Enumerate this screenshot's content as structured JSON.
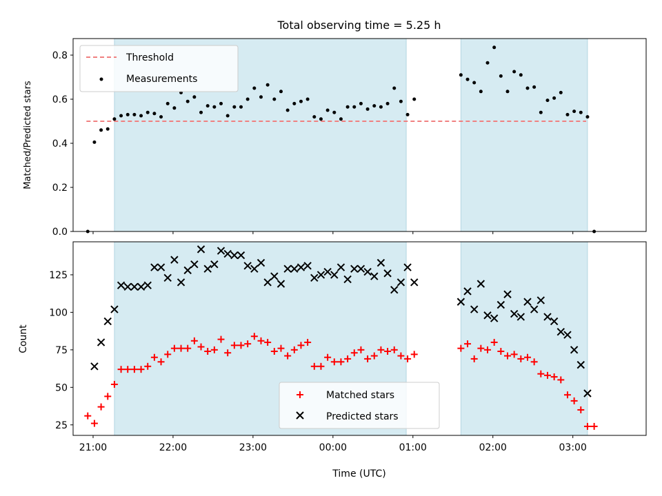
{
  "chart_data": [
    {
      "type": "scatter",
      "title": "Total observing time = 5.25 h",
      "xlabel": "",
      "ylabel": "Matched/Predicted stars",
      "xlim": [
        "20:45",
        "03:55"
      ],
      "ylim": [
        0,
        0.875
      ],
      "yticks": [
        "0.0",
        "0.2",
        "0.4",
        "0.6",
        "0.8"
      ],
      "legend_position": "upper-left",
      "shaded_intervals": [
        [
          "21:16",
          "00:55"
        ],
        [
          "01:36",
          "03:11"
        ]
      ],
      "shade_color": "#add8e6",
      "threshold": {
        "name": "Threshold",
        "value": 0.5,
        "x_range": [
          "20:55",
          "03:10"
        ],
        "color": "#f08080"
      },
      "series": [
        {
          "name": "Measurements",
          "color": "#000000",
          "marker": "dot",
          "points": [
            [
              "20:56",
              0.0
            ],
            [
              "21:01",
              0.405
            ],
            [
              "21:06",
              0.46
            ],
            [
              "21:11",
              0.465
            ],
            [
              "21:16",
              0.51
            ],
            [
              "21:21",
              0.525
            ],
            [
              "21:26",
              0.53
            ],
            [
              "21:31",
              0.53
            ],
            [
              "21:36",
              0.525
            ],
            [
              "21:41",
              0.54
            ],
            [
              "21:46",
              0.535
            ],
            [
              "21:51",
              0.52
            ],
            [
              "21:56",
              0.58
            ],
            [
              "22:01",
              0.56
            ],
            [
              "22:06",
              0.63
            ],
            [
              "22:11",
              0.59
            ],
            [
              "22:16",
              0.61
            ],
            [
              "22:21",
              0.54
            ],
            [
              "22:26",
              0.57
            ],
            [
              "22:31",
              0.565
            ],
            [
              "22:36",
              0.58
            ],
            [
              "22:41",
              0.525
            ],
            [
              "22:46",
              0.565
            ],
            [
              "22:51",
              0.565
            ],
            [
              "22:56",
              0.6
            ],
            [
              "23:01",
              0.65
            ],
            [
              "23:06",
              0.61
            ],
            [
              "23:11",
              0.665
            ],
            [
              "23:16",
              0.6
            ],
            [
              "23:21",
              0.635
            ],
            [
              "23:26",
              0.55
            ],
            [
              "23:31",
              0.58
            ],
            [
              "23:36",
              0.59
            ],
            [
              "23:41",
              0.6
            ],
            [
              "23:46",
              0.52
            ],
            [
              "23:51",
              0.51
            ],
            [
              "23:56",
              0.55
            ],
            [
              "00:01",
              0.54
            ],
            [
              "00:06",
              0.51
            ],
            [
              "00:11",
              0.565
            ],
            [
              "00:16",
              0.565
            ],
            [
              "00:21",
              0.58
            ],
            [
              "00:26",
              0.555
            ],
            [
              "00:31",
              0.57
            ],
            [
              "00:36",
              0.565
            ],
            [
              "00:41",
              0.58
            ],
            [
              "00:46",
              0.65
            ],
            [
              "00:51",
              0.59
            ],
            [
              "00:56",
              0.53
            ],
            [
              "01:01",
              0.6
            ],
            [
              "01:36",
              0.71
            ],
            [
              "01:41",
              0.69
            ],
            [
              "01:46",
              0.675
            ],
            [
              "01:51",
              0.635
            ],
            [
              "01:56",
              0.765
            ],
            [
              "02:01",
              0.835
            ],
            [
              "02:06",
              0.705
            ],
            [
              "02:11",
              0.635
            ],
            [
              "02:16",
              0.725
            ],
            [
              "02:21",
              0.71
            ],
            [
              "02:26",
              0.65
            ],
            [
              "02:31",
              0.655
            ],
            [
              "02:36",
              0.54
            ],
            [
              "02:41",
              0.595
            ],
            [
              "02:46",
              0.605
            ],
            [
              "02:51",
              0.63
            ],
            [
              "02:56",
              0.53
            ],
            [
              "03:01",
              0.545
            ],
            [
              "03:06",
              0.54
            ],
            [
              "03:11",
              0.52
            ],
            [
              "03:16",
              0.0
            ]
          ]
        }
      ]
    },
    {
      "type": "scatter",
      "title": "",
      "xlabel": "Time (UTC)",
      "ylabel": "Count",
      "xlim": [
        "20:45",
        "03:55"
      ],
      "ylim": [
        18,
        147
      ],
      "yticks": [
        "25",
        "50",
        "75",
        "100",
        "125"
      ],
      "xticks": [
        "21:00",
        "22:00",
        "23:00",
        "00:00",
        "01:00",
        "02:00",
        "03:00"
      ],
      "legend_position": "lower-center",
      "shaded_intervals": [
        [
          "21:16",
          "00:55"
        ],
        [
          "01:36",
          "03:11"
        ]
      ],
      "series": [
        {
          "name": "Matched stars",
          "color": "#ff0000",
          "marker": "plus",
          "points": [
            [
              "20:56",
              31
            ],
            [
              "21:01",
              26
            ],
            [
              "21:06",
              37
            ],
            [
              "21:11",
              44
            ],
            [
              "21:16",
              52
            ],
            [
              "21:21",
              62
            ],
            [
              "21:26",
              62
            ],
            [
              "21:31",
              62
            ],
            [
              "21:36",
              62
            ],
            [
              "21:41",
              64
            ],
            [
              "21:46",
              70
            ],
            [
              "21:51",
              67
            ],
            [
              "21:56",
              72
            ],
            [
              "22:01",
              76
            ],
            [
              "22:06",
              76
            ],
            [
              "22:11",
              76
            ],
            [
              "22:16",
              81
            ],
            [
              "22:21",
              77
            ],
            [
              "22:26",
              74
            ],
            [
              "22:31",
              75
            ],
            [
              "22:36",
              82
            ],
            [
              "22:41",
              73
            ],
            [
              "22:46",
              78
            ],
            [
              "22:51",
              78
            ],
            [
              "22:56",
              79
            ],
            [
              "23:01",
              84
            ],
            [
              "23:06",
              81
            ],
            [
              "23:11",
              80
            ],
            [
              "23:16",
              74
            ],
            [
              "23:21",
              76
            ],
            [
              "23:26",
              71
            ],
            [
              "23:31",
              75
            ],
            [
              "23:36",
              78
            ],
            [
              "23:41",
              80
            ],
            [
              "23:46",
              64
            ],
            [
              "23:51",
              64
            ],
            [
              "23:56",
              70
            ],
            [
              "00:01",
              67
            ],
            [
              "00:06",
              67
            ],
            [
              "00:11",
              69
            ],
            [
              "00:16",
              73
            ],
            [
              "00:21",
              75
            ],
            [
              "00:26",
              69
            ],
            [
              "00:31",
              71
            ],
            [
              "00:36",
              75
            ],
            [
              "00:41",
              74
            ],
            [
              "00:46",
              75
            ],
            [
              "00:51",
              71
            ],
            [
              "00:56",
              69
            ],
            [
              "01:01",
              72
            ],
            [
              "01:36",
              76
            ],
            [
              "01:41",
              79
            ],
            [
              "01:46",
              69
            ],
            [
              "01:51",
              76
            ],
            [
              "01:56",
              75
            ],
            [
              "02:01",
              80
            ],
            [
              "02:06",
              74
            ],
            [
              "02:11",
              71
            ],
            [
              "02:16",
              72
            ],
            [
              "02:21",
              69
            ],
            [
              "02:26",
              70
            ],
            [
              "02:31",
              67
            ],
            [
              "02:36",
              59
            ],
            [
              "02:41",
              58
            ],
            [
              "02:46",
              57
            ],
            [
              "02:51",
              55
            ],
            [
              "02:56",
              45
            ],
            [
              "03:01",
              41
            ],
            [
              "03:06",
              35
            ],
            [
              "03:11",
              24
            ],
            [
              "03:16",
              24
            ]
          ]
        },
        {
          "name": "Predicted stars",
          "color": "#000000",
          "marker": "x",
          "points": [
            [
              "21:01",
              64
            ],
            [
              "21:06",
              80
            ],
            [
              "21:11",
              94
            ],
            [
              "21:16",
              102
            ],
            [
              "21:21",
              118
            ],
            [
              "21:26",
              117
            ],
            [
              "21:31",
              117
            ],
            [
              "21:36",
              117
            ],
            [
              "21:41",
              118
            ],
            [
              "21:46",
              130
            ],
            [
              "21:51",
              130
            ],
            [
              "21:56",
              123
            ],
            [
              "22:01",
              135
            ],
            [
              "22:06",
              120
            ],
            [
              "22:11",
              128
            ],
            [
              "22:16",
              132
            ],
            [
              "22:21",
              142
            ],
            [
              "22:26",
              129
            ],
            [
              "22:31",
              132
            ],
            [
              "22:36",
              141
            ],
            [
              "22:41",
              139
            ],
            [
              "22:46",
              138
            ],
            [
              "22:51",
              138
            ],
            [
              "22:56",
              131
            ],
            [
              "23:01",
              129
            ],
            [
              "23:06",
              133
            ],
            [
              "23:11",
              120
            ],
            [
              "23:16",
              124
            ],
            [
              "23:21",
              119
            ],
            [
              "23:26",
              129
            ],
            [
              "23:31",
              129
            ],
            [
              "23:36",
              130
            ],
            [
              "23:41",
              131
            ],
            [
              "23:46",
              123
            ],
            [
              "23:51",
              125
            ],
            [
              "23:56",
              127
            ],
            [
              "00:01",
              125
            ],
            [
              "00:06",
              130
            ],
            [
              "00:11",
              122
            ],
            [
              "00:16",
              129
            ],
            [
              "00:21",
              129
            ],
            [
              "00:26",
              127
            ],
            [
              "00:31",
              124
            ],
            [
              "00:36",
              133
            ],
            [
              "00:41",
              126
            ],
            [
              "00:46",
              115
            ],
            [
              "00:51",
              120
            ],
            [
              "00:56",
              130
            ],
            [
              "01:01",
              120
            ],
            [
              "01:36",
              107
            ],
            [
              "01:41",
              114
            ],
            [
              "01:46",
              102
            ],
            [
              "01:51",
              119
            ],
            [
              "01:56",
              98
            ],
            [
              "02:01",
              96
            ],
            [
              "02:06",
              105
            ],
            [
              "02:11",
              112
            ],
            [
              "02:16",
              99
            ],
            [
              "02:21",
              97
            ],
            [
              "02:26",
              107
            ],
            [
              "02:31",
              102
            ],
            [
              "02:36",
              108
            ],
            [
              "02:41",
              97
            ],
            [
              "02:46",
              94
            ],
            [
              "02:51",
              87
            ],
            [
              "02:56",
              85
            ],
            [
              "03:01",
              75
            ],
            [
              "03:06",
              65
            ],
            [
              "03:11",
              46
            ]
          ]
        }
      ]
    }
  ]
}
